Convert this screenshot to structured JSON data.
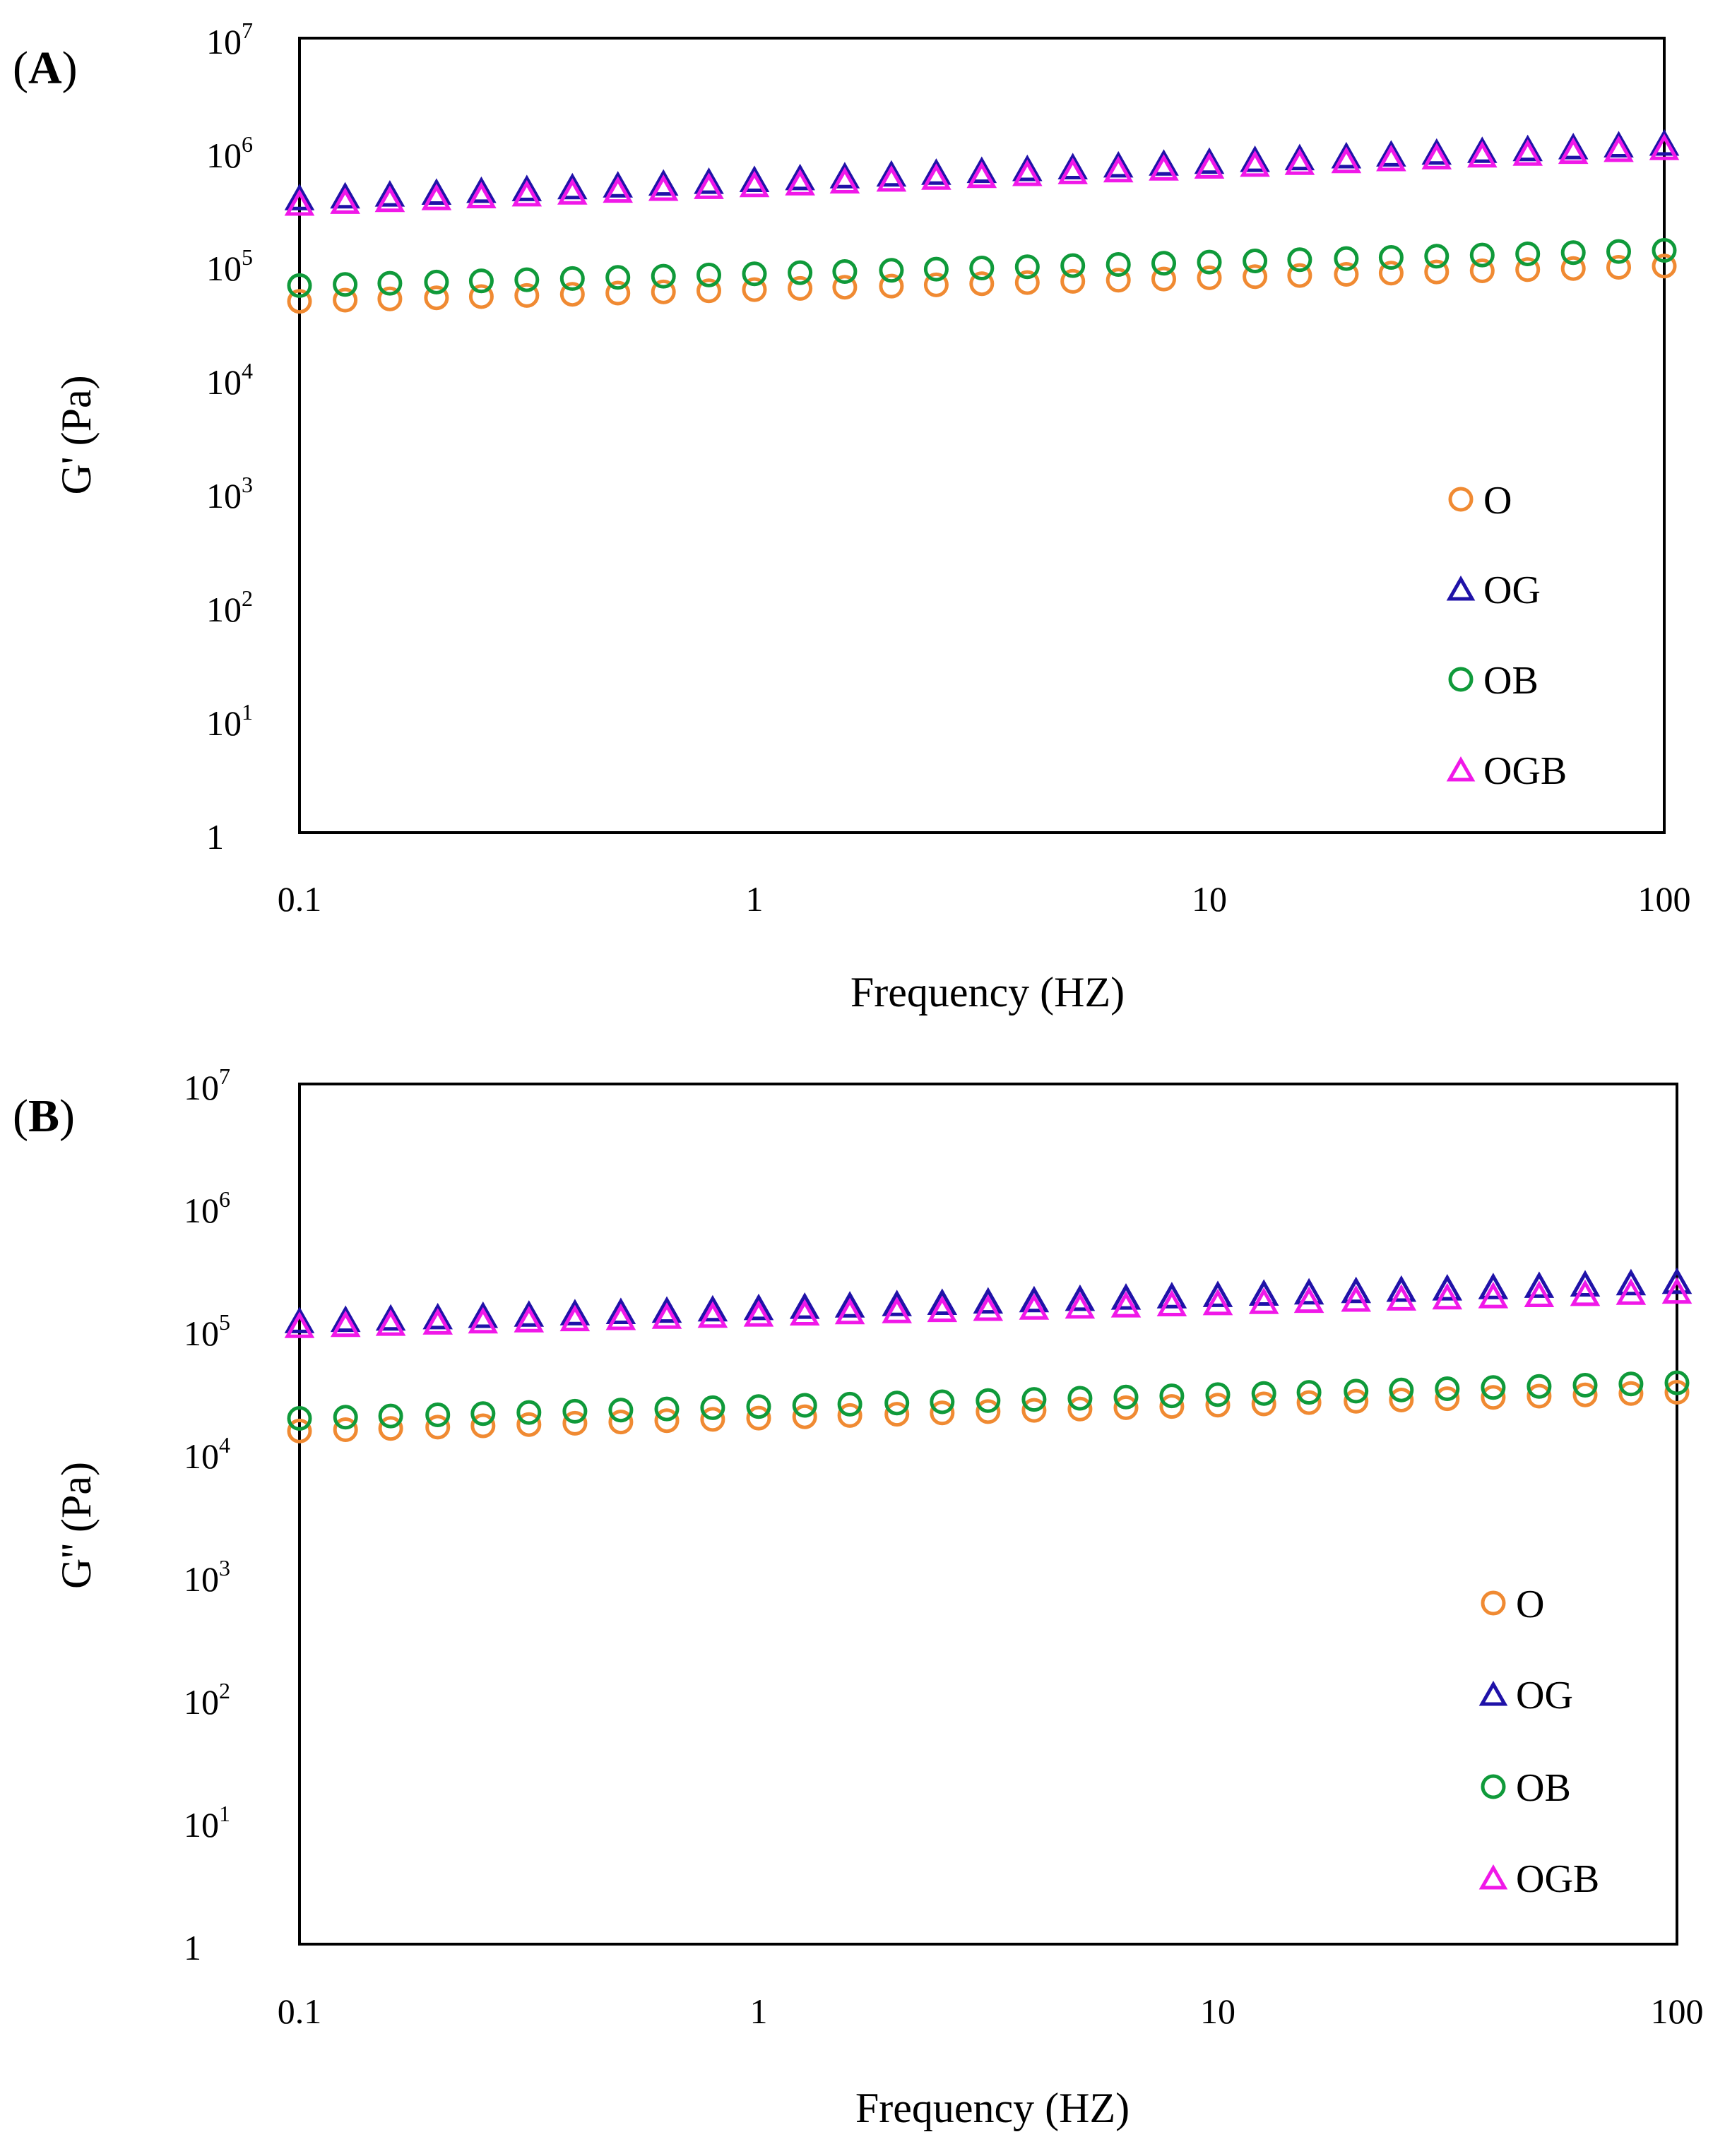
{
  "colors": {
    "O": "#F08A32",
    "OG": "#1F12A8",
    "OB": "#0F9A3A",
    "OGB": "#F018E8",
    "axis": "#000000"
  },
  "chart_data": [
    {
      "type": "scatter",
      "panel_label": "A",
      "xscale": "log",
      "yscale": "log",
      "xlim": [
        0.1,
        100
      ],
      "ylim": [
        1,
        10000000
      ],
      "xticks": [
        "0.1",
        "1",
        "10",
        "100"
      ],
      "yticks": [
        {
          "base": "1",
          "exp": ""
        },
        {
          "base": "10",
          "exp": "1"
        },
        {
          "base": "10",
          "exp": "2"
        },
        {
          "base": "10",
          "exp": "3"
        },
        {
          "base": "10",
          "exp": "4"
        },
        {
          "base": "10",
          "exp": "5"
        },
        {
          "base": "10",
          "exp": "6"
        },
        {
          "base": "10",
          "exp": "7"
        }
      ],
      "xlabel": "Frequency (HZ)",
      "ylabel": "G' (Pa)",
      "legend_position": "lower-right",
      "frequencies_hz": [
        0.1,
        0.126,
        0.158,
        0.2,
        0.251,
        0.316,
        0.398,
        0.501,
        0.631,
        0.794,
        1,
        1.26,
        1.58,
        2,
        2.51,
        3.16,
        3.98,
        5.01,
        6.31,
        7.94,
        10,
        12.6,
        15.8,
        20,
        25.1,
        31.6,
        39.8,
        50.1,
        63.1,
        79.4,
        100
      ],
      "series": [
        {
          "name": "O",
          "marker": "circle",
          "color_key": "O",
          "start": 48000,
          "end": 98000
        },
        {
          "name": "OG",
          "marker": "triangle",
          "color_key": "OG",
          "start": 380000,
          "end": 1150000
        },
        {
          "name": "OB",
          "marker": "circle",
          "color_key": "OB",
          "start": 66000,
          "end": 135000
        },
        {
          "name": "OGB",
          "marker": "triangle",
          "color_key": "OGB",
          "start": 340000,
          "end": 1050000
        }
      ]
    },
    {
      "type": "scatter",
      "panel_label": "B",
      "xscale": "log",
      "yscale": "log",
      "xlim": [
        0.1,
        100
      ],
      "ylim": [
        1,
        10000000
      ],
      "xticks": [
        "0.1",
        "1",
        "10",
        "100"
      ],
      "yticks": [
        {
          "base": "1",
          "exp": ""
        },
        {
          "base": "10",
          "exp": "1"
        },
        {
          "base": "10",
          "exp": "2"
        },
        {
          "base": "10",
          "exp": "3"
        },
        {
          "base": "10",
          "exp": "4"
        },
        {
          "base": "10",
          "exp": "5"
        },
        {
          "base": "10",
          "exp": "6"
        },
        {
          "base": "10",
          "exp": "7"
        }
      ],
      "xlabel": "Frequency (HZ)",
      "ylabel": "G'' (Pa)",
      "legend_position": "lower-right",
      "frequencies_hz": [
        0.1,
        0.126,
        0.158,
        0.2,
        0.251,
        0.316,
        0.398,
        0.501,
        0.631,
        0.794,
        1,
        1.26,
        1.58,
        2,
        2.51,
        3.16,
        3.98,
        5.01,
        6.31,
        7.94,
        10,
        12.6,
        15.8,
        20,
        25.1,
        31.6,
        39.8,
        50.1,
        63.1,
        79.4,
        100
      ],
      "series": [
        {
          "name": "O",
          "marker": "circle",
          "color_key": "O",
          "start": 15000,
          "end": 31000
        },
        {
          "name": "OG",
          "marker": "triangle",
          "color_key": "OG",
          "start": 115000,
          "end": 240000
        },
        {
          "name": "OB",
          "marker": "circle",
          "color_key": "OB",
          "start": 19000,
          "end": 37000
        },
        {
          "name": "OGB",
          "marker": "triangle",
          "color_key": "OGB",
          "start": 105000,
          "end": 200000
        }
      ]
    }
  ]
}
